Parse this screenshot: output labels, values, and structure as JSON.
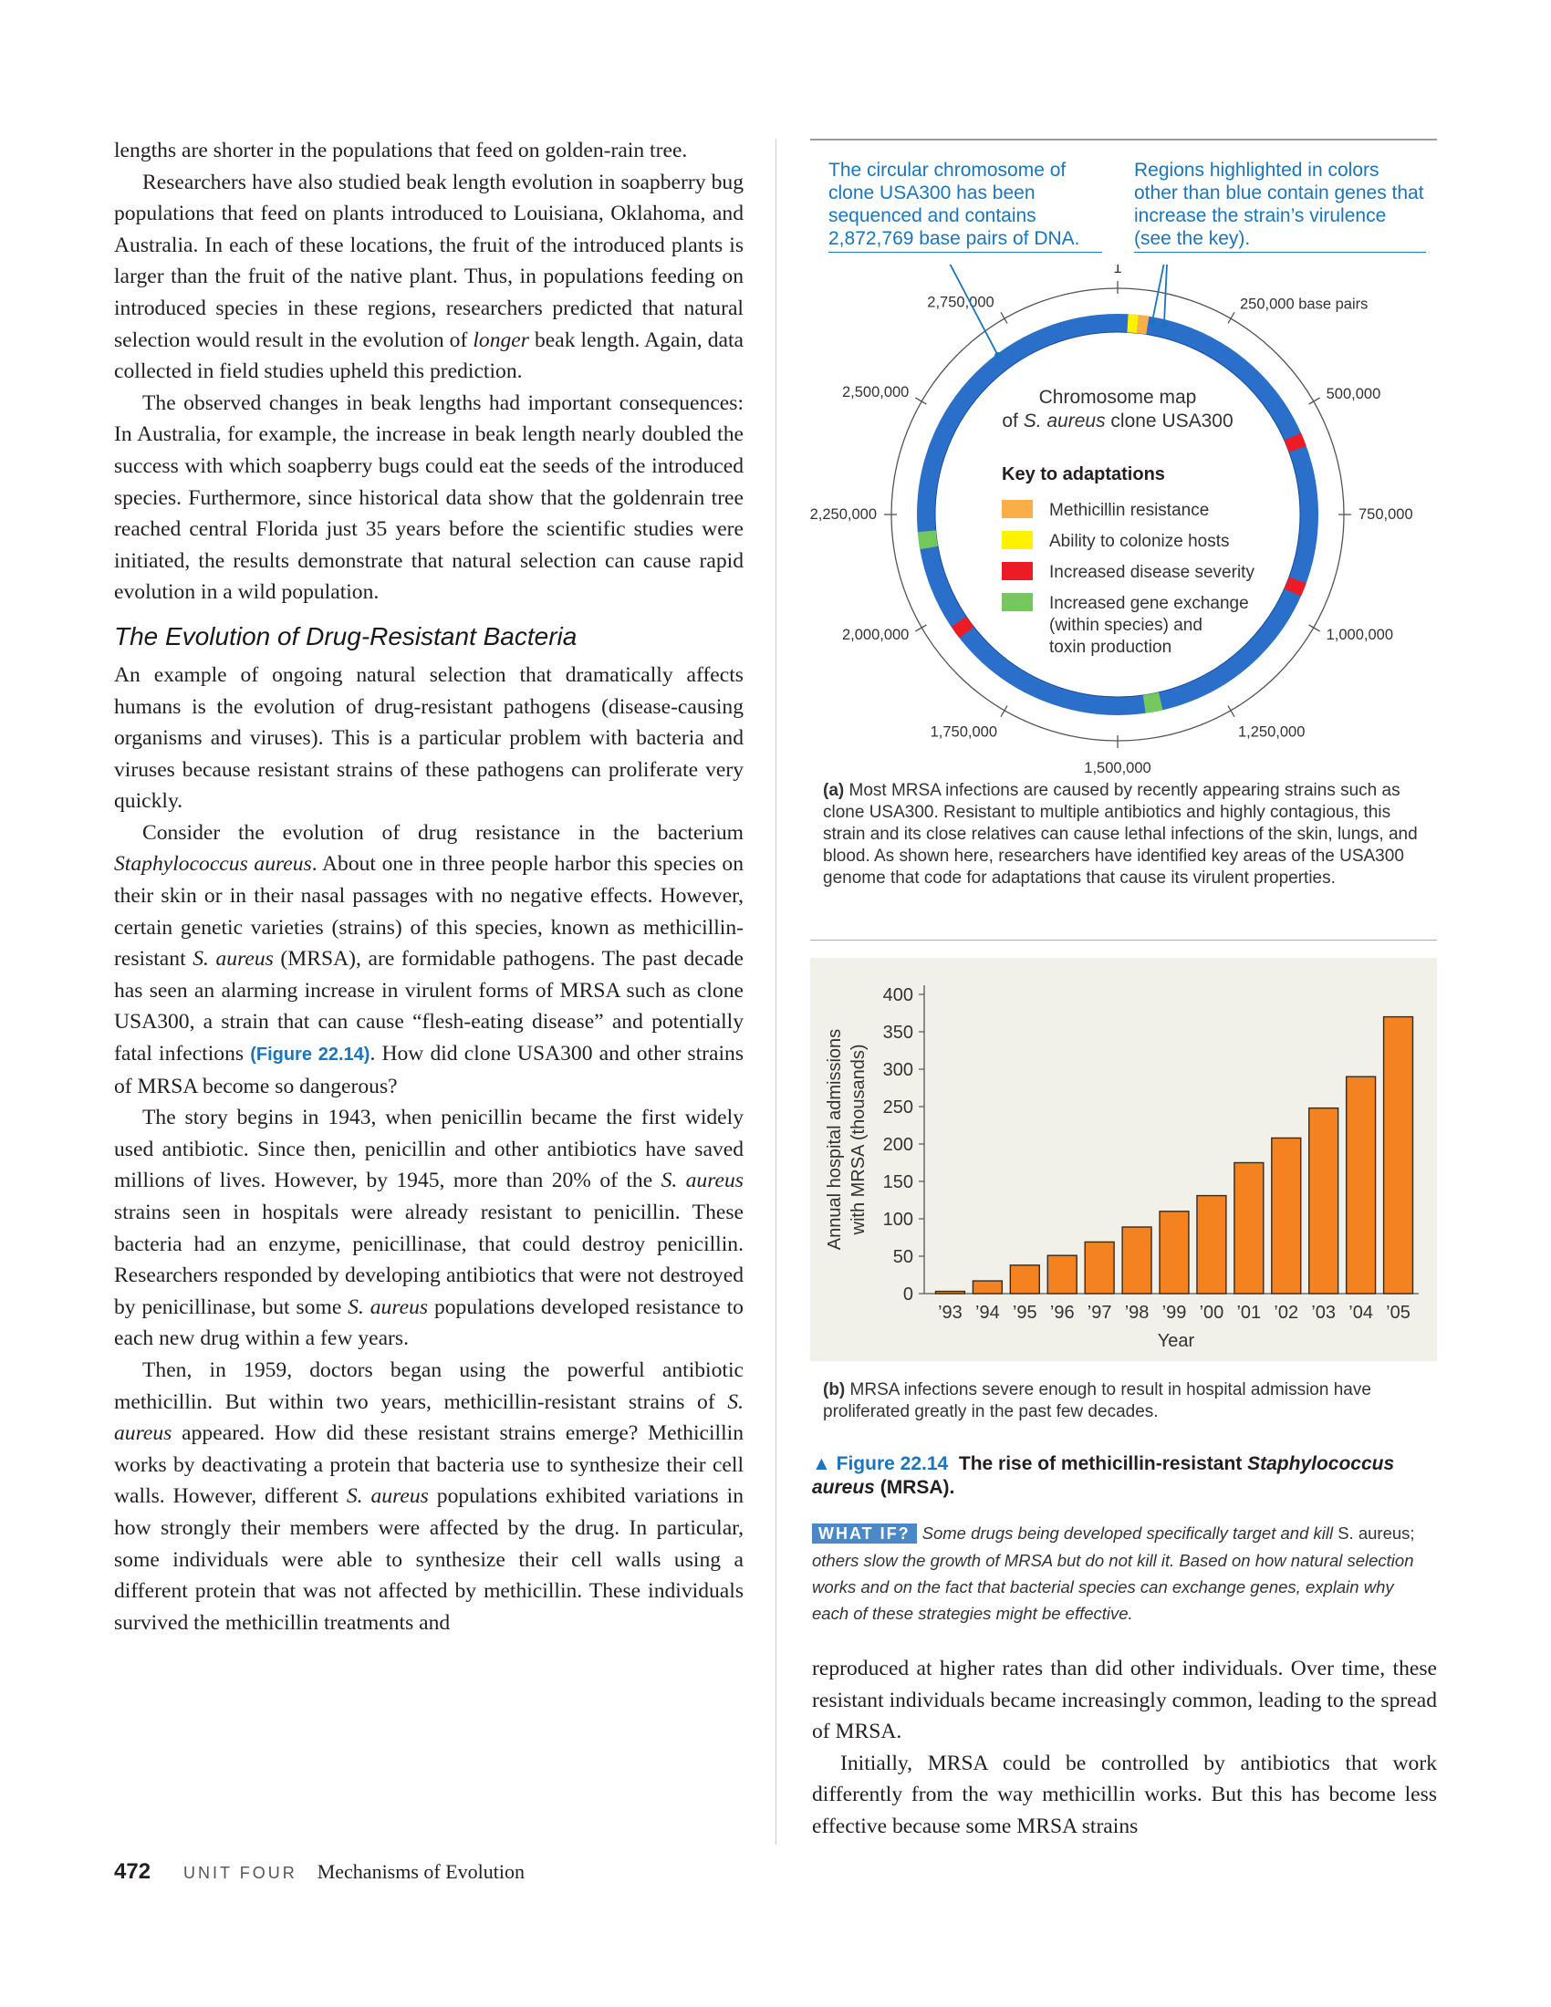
{
  "left_text": {
    "p1": "lengths are shorter in the populations that feed on golden-rain tree.",
    "p2": "Researchers have also studied beak length evolution in soapberry bug populations that feed on plants introduced to Louisiana, Oklahoma, and Australia. In each of these locations, the fruit of the introduced plants is larger than the fruit of the native plant. Thus, in populations feeding on introduced species in these regions, researchers predicted that natural selection would result in the evolution of ",
    "p2_em": "longer",
    "p2_end": " beak length. Again, data collected in field studies upheld this prediction.",
    "p3": "The observed changes in beak lengths had important consequences: In Australia, for example, the increase in beak length nearly doubled the success with which soapberry bugs could eat the seeds of the introduced species. Furthermore, since historical data show that the goldenrain tree reached central Florida just 35 years before the scientific studies were initiated, the results demonstrate that natural selection can cause rapid evolution in a wild population.",
    "heading": "The Evolution of Drug-Resistant Bacteria",
    "p4": "An example of ongoing natural selection that dramatically affects humans is the evolution of drug-resistant pathogens (disease-causing organisms and viruses). This is a particular problem with bacteria and viruses because resistant strains of these pathogens can proliferate very quickly.",
    "p5_a": "Consider the evolution of drug resistance in the bacterium ",
    "p5_em1": "Staphylococcus aureus",
    "p5_b": ". About one in three people harbor this species on their skin or in their nasal passages with no negative effects. However, certain genetic varieties (strains) of this species, known as methicillin-resistant ",
    "p5_em2": "S. aureus",
    "p5_c": " (MRSA), are formidable pathogens. The past decade has seen an alarming increase in virulent forms of MRSA such as clone USA300, a strain that can cause “flesh-eating disease” and potentially fatal infections ",
    "p5_ref": "(Figure 22.14)",
    "p5_d": ". How did clone USA300 and other strains of MRSA become so dangerous?",
    "p6_a": "The story begins in 1943, when penicillin became the first widely used antibiotic. Since then, penicillin and other antibiotics have saved millions of lives. However, by 1945, more than 20% of the ",
    "p6_em1": "S. aureus",
    "p6_b": " strains seen in hospitals were already resistant to penicillin. These bacteria had an enzyme, penicillinase, that could destroy penicillin. Researchers responded by developing antibiotics that were not destroyed by penicillinase, but some ",
    "p6_em2": "S. aureus",
    "p6_c": " populations developed resistance to each new drug within a few years.",
    "p7_a": "Then, in 1959, doctors began using the powerful antibiotic methicillin. But within two years, methicillin-resistant strains of ",
    "p7_em1": "S. aureus",
    "p7_b": " appeared. How did these resistant strains emerge? Methicillin works by deactivating a protein that bacteria use to synthesize their cell walls. However, different ",
    "p7_em2": "S. aureus",
    "p7_c": " populations exhibited variations in how strongly their members were affected by the drug. In particular, some individuals were able to synthesize their cell walls using a different protein that was not affected by methicillin. These individuals survived the methicillin treatments and"
  },
  "figure_a": {
    "callout_left": "The circular chromosome of clone USA300 has been sequenced and contains 2,872,769 base pairs of DNA.",
    "callout_right": "Regions highlighted in colors other than blue contain genes that increase the strain’s virulence (see the key).",
    "map_title_1": "Chromosome map",
    "map_title_2_pre": "of ",
    "map_title_2_em": "S. aureus",
    "map_title_2_post": " clone USA300",
    "key_title": "Key to adaptations",
    "key_items": [
      {
        "label": "Methicillin resistance",
        "color": "#f9ae47"
      },
      {
        "label": "Ability to colonize hosts",
        "color": "#fff200"
      },
      {
        "label": "Increased disease severity",
        "color": "#ed1c24"
      },
      {
        "label": "Increased gene exchange (within species) and toxin production",
        "color": "#75c85d"
      }
    ],
    "key_lines": [
      [
        "Methicillin resistance"
      ],
      [
        "Ability to colonize hosts"
      ],
      [
        "Increased disease severity"
      ],
      [
        "Increased gene exchange",
        "(within species) and",
        "toxin production"
      ]
    ],
    "ring_color": "#2a6fc9",
    "ticks": [
      "1",
      "250,000 base pairs",
      "500,000",
      "750,000",
      "1,000,000",
      "1,250,000",
      "1,500,000",
      "1,750,000",
      "2,000,000",
      "2,250,000",
      "2,500,000",
      "2,750,000"
    ],
    "caption_label": "(a)",
    "caption": "Most MRSA infections are caused by recently appearing strains such as clone USA300. Resistant to multiple antibiotics and highly contagious, this strain and its close relatives can cause lethal infections of the skin, lungs, and blood. As shown here, researchers have identified key areas of the USA300 genome that code for adaptations that cause its virulent properties."
  },
  "figure_b": {
    "caption_label": "(b)",
    "caption": "MRSA infections severe enough to result in hospital admission have proliferated greatly in the past few decades."
  },
  "chart_data": {
    "type": "bar",
    "categories": [
      "’93",
      "’94",
      "’95",
      "’96",
      "’97",
      "’98",
      "’99",
      "’00",
      "’01",
      "’02",
      "’03",
      "’04",
      "’05"
    ],
    "values": [
      3,
      17,
      38,
      51,
      69,
      89,
      110,
      131,
      175,
      208,
      248,
      290,
      370
    ],
    "xlabel": "Year",
    "ylabel": [
      "Annual hospital admissions",
      "with MRSA (thousands)"
    ],
    "ylim": [
      0,
      400
    ],
    "yticks": [
      0,
      50,
      100,
      150,
      200,
      250,
      300,
      350,
      400
    ],
    "bar_color": "#f58220",
    "grid": false
  },
  "figure_title": {
    "marker": "▲",
    "number": "Figure 22.14",
    "text": "The rise of methicillin-resistant ",
    "em": "Staphylococcus aureus",
    "tail": " (MRSA)."
  },
  "what_if": {
    "badge": "WHAT IF?",
    "text_a": "Some drugs being developed specifically target and kill ",
    "text_plain": "S. aureus;",
    "text_b": " others slow the growth of MRSA but do not kill it. Based on how natural selection works and on the fact that bacterial species can exchange genes, explain why each of these strategies might be effective."
  },
  "right_text": {
    "p1": "reproduced at higher rates than did other individuals. Over time, these resistant individuals became increasingly common, leading to the spread of MRSA.",
    "p2": "Initially, MRSA could be controlled by antibiotics that work differently from the way methicillin works. But this has become less effective because some MRSA strains"
  },
  "footer": {
    "page_number": "472",
    "unit": "UNIT FOUR",
    "title": "Mechanisms of Evolution"
  }
}
